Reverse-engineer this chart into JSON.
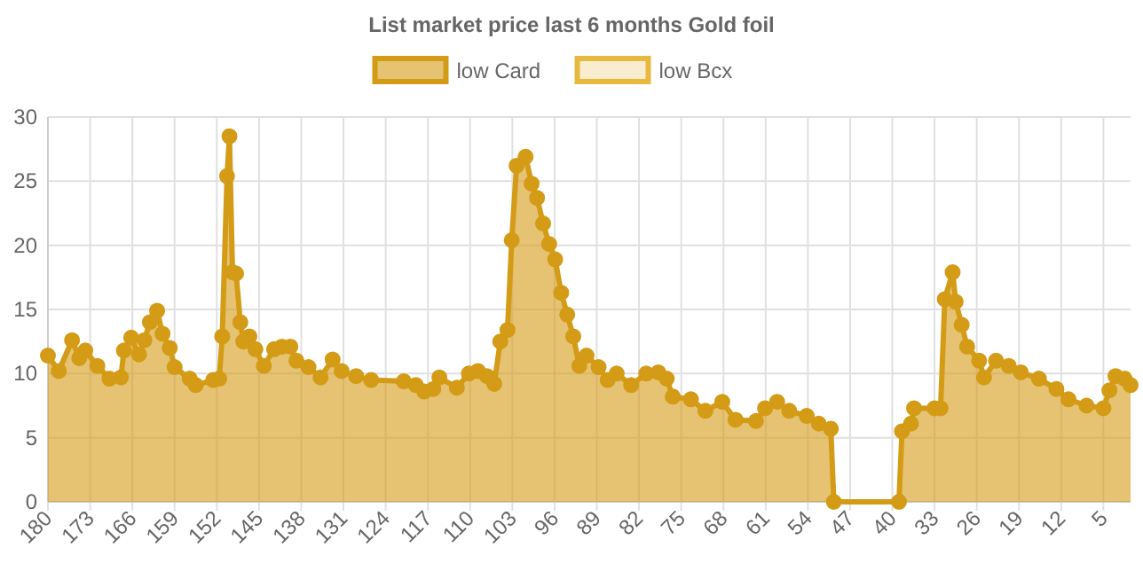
{
  "chart_data": {
    "type": "area",
    "title": "List market price last 6 months Gold foil",
    "xlim": [
      180,
      0.5
    ],
    "xticks": [
      180,
      173,
      166,
      159,
      152,
      145,
      138,
      131,
      124,
      117,
      110,
      103,
      96,
      89,
      82,
      75,
      68,
      61,
      54,
      47,
      40,
      33,
      26,
      19,
      12,
      5
    ],
    "ylim": [
      0,
      30
    ],
    "yticks": [
      0,
      5,
      10,
      15,
      20,
      25,
      30
    ],
    "grid": true,
    "legend": "top",
    "marker": "circle",
    "series": [
      {
        "name": "low Card",
        "color": "#d49b16",
        "x": [
          180,
          178.2,
          176,
          174.8,
          173.8,
          171.8,
          169.8,
          167.9,
          167.4,
          166.2,
          164.9,
          164,
          163.1,
          161.9,
          161,
          159.8,
          159,
          156.5,
          155.5,
          152.6,
          151.6,
          151.1,
          150.3,
          149.9,
          149.4,
          148.8,
          148.1,
          147.6,
          146.6,
          145.6,
          144.2,
          142.5,
          141.2,
          139.8,
          138.8,
          136.8,
          134.8,
          132.8,
          131.3,
          128.9,
          126.4,
          121,
          119,
          117.6,
          116.1,
          115.1,
          112.2,
          110.2,
          108.7,
          107.2,
          106,
          105,
          103.8,
          103.1,
          102.3,
          100.8,
          99.8,
          98.9,
          97.9,
          96.9,
          95.9,
          94.9,
          93.9,
          92.9,
          91.9,
          90.7,
          88.7,
          87.2,
          85.7,
          83.3,
          80.8,
          78.8,
          77.4,
          76.4,
          73.4,
          71,
          68.2,
          66,
          62.6,
          61.1,
          59.1,
          57.1,
          54.2,
          52.2,
          50.2,
          49.7,
          38.9,
          38.4,
          36.9,
          36.4,
          33,
          32,
          31.3,
          30,
          29.5,
          28.5,
          27.6,
          25.6,
          24.8,
          22.8,
          20.7,
          18.7,
          15.7,
          12.8,
          10.8,
          7.8,
          5,
          4,
          3,
          1.5,
          0.5
        ],
        "values": [
          11.4,
          10.2,
          12.6,
          11.2,
          11.8,
          10.6,
          9.6,
          9.7,
          11.8,
          12.8,
          11.5,
          12.6,
          14,
          14.9,
          13.1,
          12,
          10.5,
          9.6,
          9.1,
          9.5,
          9.6,
          12.9,
          25.4,
          28.5,
          17.9,
          17.8,
          14,
          12.5,
          12.9,
          11.9,
          10.6,
          11.9,
          12.1,
          12.1,
          11,
          10.5,
          9.7,
          11.1,
          10.2,
          9.8,
          9.5,
          9.4,
          9.1,
          8.6,
          8.8,
          9.7,
          8.9,
          10,
          10.2,
          9.8,
          9.2,
          12.5,
          13.4,
          20.4,
          26.2,
          26.9,
          24.8,
          23.7,
          21.7,
          20.1,
          18.9,
          16.3,
          14.6,
          12.9,
          10.6,
          11.4,
          10.5,
          9.5,
          10,
          9.1,
          10,
          10.1,
          9.6,
          8.2,
          8,
          7.1,
          7.8,
          6.4,
          6.3,
          7.3,
          7.8,
          7.1,
          6.7,
          6.1,
          5.7,
          0,
          0,
          5.5,
          6.1,
          7.3,
          7.3,
          7.3,
          15.8,
          17.9,
          15.6,
          13.8,
          12.1,
          11,
          9.7,
          11,
          10.6,
          10.1,
          9.6,
          8.8,
          8,
          7.5,
          7.3,
          8.7,
          9.8,
          9.6,
          9.1
        ]
      },
      {
        "name": "low Bcx",
        "color": "#e8b93f"
      }
    ]
  }
}
